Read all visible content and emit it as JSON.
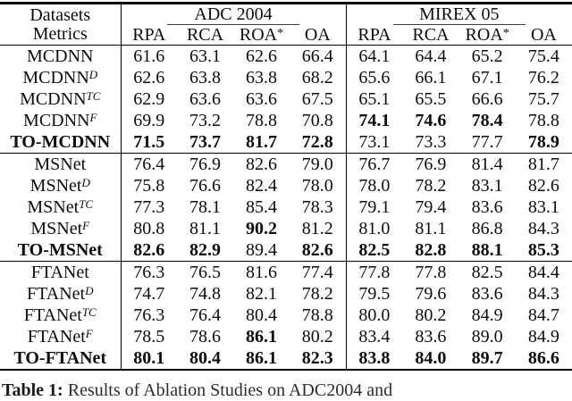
{
  "table": {
    "corner": {
      "line1": "Datasets",
      "line2": "Metrics"
    },
    "col_groups": [
      {
        "label": "ADC 2004"
      },
      {
        "label": "MIREX 05"
      }
    ],
    "metrics": [
      {
        "t": "RPA",
        "s": ""
      },
      {
        "t": "RCA",
        "s": ""
      },
      {
        "t": "ROA",
        "s": "*"
      },
      {
        "t": "OA",
        "s": ""
      }
    ],
    "groups": [
      {
        "rows": [
          {
            "label": {
              "base": "MCDNN",
              "sup": ""
            },
            "bold_label": false,
            "values": [
              "61.6",
              "63.1",
              "62.6",
              "66.4",
              "64.1",
              "64.4",
              "65.2",
              "75.4"
            ],
            "bold": [
              false,
              false,
              false,
              false,
              false,
              false,
              false,
              false
            ]
          },
          {
            "label": {
              "base": "MCDNN",
              "sup": "D"
            },
            "bold_label": false,
            "values": [
              "62.6",
              "63.8",
              "63.8",
              "68.2",
              "65.6",
              "66.1",
              "67.1",
              "76.2"
            ],
            "bold": [
              false,
              false,
              false,
              false,
              false,
              false,
              false,
              false
            ]
          },
          {
            "label": {
              "base": "MCDNN",
              "sup": "TC"
            },
            "bold_label": false,
            "values": [
              "62.9",
              "63.6",
              "63.6",
              "67.5",
              "65.1",
              "65.5",
              "66.6",
              "75.7"
            ],
            "bold": [
              false,
              false,
              false,
              false,
              false,
              false,
              false,
              false
            ]
          },
          {
            "label": {
              "base": "MCDNN",
              "sup": "F"
            },
            "bold_label": false,
            "values": [
              "69.9",
              "73.2",
              "78.8",
              "70.8",
              "74.1",
              "74.6",
              "78.4",
              "78.8"
            ],
            "bold": [
              false,
              false,
              false,
              false,
              true,
              true,
              true,
              false
            ]
          },
          {
            "label": {
              "base": "TO-MCDNN",
              "sup": ""
            },
            "bold_label": true,
            "values": [
              "71.5",
              "73.7",
              "81.7",
              "72.8",
              "73.1",
              "73.3",
              "77.7",
              "78.9"
            ],
            "bold": [
              true,
              true,
              true,
              true,
              false,
              false,
              false,
              true
            ]
          }
        ]
      },
      {
        "rows": [
          {
            "label": {
              "base": "MSNet",
              "sup": ""
            },
            "bold_label": false,
            "values": [
              "76.4",
              "76.9",
              "82.6",
              "79.0",
              "76.7",
              "76.9",
              "81.4",
              "81.7"
            ],
            "bold": [
              false,
              false,
              false,
              false,
              false,
              false,
              false,
              false
            ]
          },
          {
            "label": {
              "base": "MSNet",
              "sup": "D"
            },
            "bold_label": false,
            "values": [
              "75.8",
              "76.6",
              "82.4",
              "78.0",
              "78.0",
              "78.2",
              "83.1",
              "82.6"
            ],
            "bold": [
              false,
              false,
              false,
              false,
              false,
              false,
              false,
              false
            ]
          },
          {
            "label": {
              "base": "MSNet",
              "sup": "TC"
            },
            "bold_label": false,
            "values": [
              "77.3",
              "78.1",
              "85.4",
              "78.3",
              "79.1",
              "79.4",
              "83.6",
              "83.1"
            ],
            "bold": [
              false,
              false,
              false,
              false,
              false,
              false,
              false,
              false
            ]
          },
          {
            "label": {
              "base": "MSNet",
              "sup": "F"
            },
            "bold_label": false,
            "values": [
              "80.8",
              "81.1",
              "90.2",
              "81.2",
              "81.0",
              "81.1",
              "86.8",
              "84.3"
            ],
            "bold": [
              false,
              false,
              true,
              false,
              false,
              false,
              false,
              false
            ]
          },
          {
            "label": {
              "base": "TO-MSNet",
              "sup": ""
            },
            "bold_label": true,
            "values": [
              "82.6",
              "82.9",
              "89.4",
              "82.6",
              "82.5",
              "82.8",
              "88.1",
              "85.3"
            ],
            "bold": [
              true,
              true,
              false,
              true,
              true,
              true,
              true,
              true
            ]
          }
        ]
      },
      {
        "rows": [
          {
            "label": {
              "base": "FTANet",
              "sup": ""
            },
            "bold_label": false,
            "values": [
              "76.3",
              "76.5",
              "81.6",
              "77.4",
              "77.8",
              "77.8",
              "82.5",
              "84.4"
            ],
            "bold": [
              false,
              false,
              false,
              false,
              false,
              false,
              false,
              false
            ]
          },
          {
            "label": {
              "base": "FTANet",
              "sup": "D"
            },
            "bold_label": false,
            "values": [
              "74.7",
              "74.8",
              "82.1",
              "78.2",
              "79.5",
              "79.6",
              "83.6",
              "84.3"
            ],
            "bold": [
              false,
              false,
              false,
              false,
              false,
              false,
              false,
              false
            ]
          },
          {
            "label": {
              "base": "FTANet",
              "sup": "TC"
            },
            "bold_label": false,
            "values": [
              "76.3",
              "76.4",
              "80.4",
              "78.8",
              "80.0",
              "80.2",
              "84.9",
              "84.7"
            ],
            "bold": [
              false,
              false,
              false,
              false,
              false,
              false,
              false,
              false
            ]
          },
          {
            "label": {
              "base": "FTANet",
              "sup": "F"
            },
            "bold_label": false,
            "values": [
              "78.5",
              "78.6",
              "86.1",
              "80.2",
              "83.4",
              "83.6",
              "89.0",
              "84.9"
            ],
            "bold": [
              false,
              false,
              true,
              false,
              false,
              false,
              false,
              false
            ]
          },
          {
            "label": {
              "base": "TO-FTANet",
              "sup": ""
            },
            "bold_label": true,
            "values": [
              "80.1",
              "80.4",
              "86.1",
              "82.3",
              "83.8",
              "84.0",
              "89.7",
              "86.6"
            ],
            "bold": [
              true,
              true,
              true,
              true,
              true,
              true,
              true,
              true
            ]
          }
        ]
      }
    ]
  },
  "caption": {
    "prefix": "Table 1:",
    "text": "Results of Ablation Studies on ADC2004 and"
  }
}
